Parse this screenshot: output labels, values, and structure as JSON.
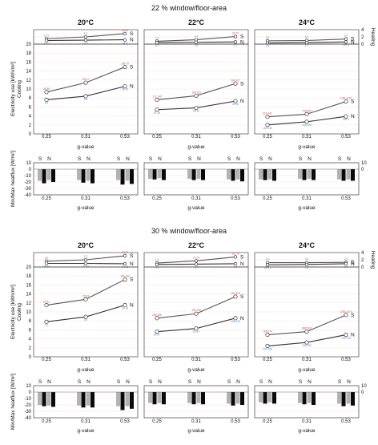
{
  "figure": {
    "axis_labels": {
      "heating": "Heating",
      "cooling": "Cooling",
      "electricity": "Electricity use [kWh/m²]",
      "heatflux": "Min/Max heatflux [W/m²]",
      "gvalue": "g-value"
    },
    "series_tags": [
      "S",
      "N"
    ],
    "colors": {
      "S": "#555555",
      "N": "#333333",
      "bar_light": "#b3b3b3",
      "bar_dark": "#0a0a0a",
      "label_red": "#d05050",
      "label_blue": "#4f86c8"
    }
  },
  "chart_data": [
    {
      "type": "line",
      "group_title": "22 % window/floor-area",
      "temperature": "20°C",
      "categories": [
        "0.25",
        "0.31",
        "0.53"
      ],
      "heating": {
        "ylim": [
          0,
          4
        ],
        "yticks": [
          0,
          2,
          4
        ],
        "series": [
          {
            "name": "S",
            "values": [
              1.5,
              2.0,
              2.9
            ],
            "labels": [
              "17 0",
              "8 2",
              "25 45"
            ]
          },
          {
            "name": "N",
            "values": [
              1.0,
              1.1,
              1.2
            ],
            "labels": [
              "15 0",
              "11 0",
              "11 0"
            ]
          }
        ]
      },
      "cooling": {
        "ylim": [
          0,
          20
        ],
        "yticks": [
          0,
          2,
          4,
          6,
          8,
          10,
          12,
          14,
          16,
          18,
          20
        ],
        "series": [
          {
            "name": "S",
            "values": [
              9.3,
              11.4,
              14.9
            ],
            "labels": [
              "38 36",
              "52 57",
              "106 79"
            ]
          },
          {
            "name": "N",
            "values": [
              7.6,
              8.4,
              10.6
            ],
            "labels": [
              "8 8",
              "8 8",
              "35 15"
            ]
          }
        ]
      },
      "heatflux": {
        "ylim": [
          -40,
          10
        ],
        "yticks": [
          -40,
          -30,
          -20,
          -10,
          0,
          10
        ],
        "bars": [
          [
            -18,
            -22,
            -17,
            -20
          ],
          [
            -17,
            -21,
            -18,
            -22
          ],
          [
            -17,
            -24,
            -18,
            -23
          ]
        ]
      }
    },
    {
      "type": "line",
      "group_title": "22 % window/floor-area",
      "temperature": "22°C",
      "categories": [
        "0.25",
        "0.31",
        "0.53"
      ],
      "heating": {
        "ylim": [
          0,
          4
        ],
        "yticks": [
          0,
          2,
          4
        ],
        "series": [
          {
            "name": "S",
            "values": [
              0.8,
              1.2,
              2.1
            ],
            "labels": [
              "2 3",
              "0 4",
              "24 79"
            ]
          },
          {
            "name": "N",
            "values": [
              0.4,
              0.5,
              0.6
            ],
            "labels": [
              "8 0",
              "0 0",
              "0 0"
            ]
          }
        ]
      },
      "cooling": {
        "ylim": [
          0,
          20
        ],
        "yticks": [
          0,
          2,
          4,
          6,
          8,
          10,
          12,
          14,
          16,
          18,
          20
        ],
        "series": [
          {
            "name": "S",
            "values": [
              7.6,
              8.5,
              11.2
            ],
            "labels": [
              "171 149",
              "189 233",
              "566 427"
            ]
          },
          {
            "name": "N",
            "values": [
              5.4,
              5.8,
              7.3
            ],
            "labels": [
              "57 26",
              "58 42",
              "42 98"
            ]
          }
        ]
      },
      "heatflux": {
        "ylim": [
          -40,
          10
        ],
        "yticks": [
          -40,
          -30,
          -20,
          -10,
          0,
          10
        ],
        "bars": [
          [
            -15,
            -16,
            -14,
            -17
          ],
          [
            -15,
            -17,
            -15,
            -17
          ],
          [
            -16,
            -18,
            -16,
            -19
          ]
        ]
      }
    },
    {
      "type": "line",
      "group_title": "22 % window/floor-area",
      "temperature": "24°C",
      "categories": [
        "0.25",
        "0.31",
        "0.53"
      ],
      "heating": {
        "ylim": [
          0,
          4
        ],
        "yticks": [
          0,
          2,
          4
        ],
        "series": [
          {
            "name": "S",
            "values": [
              0.9,
              1.0,
              1.4
            ],
            "labels": [
              "0 0",
              "0 0",
              "0 0"
            ]
          },
          {
            "name": "N",
            "values": [
              0.3,
              0.4,
              0.6
            ],
            "labels": [
              "0 1",
              "1 0",
              "297 4"
            ]
          }
        ]
      },
      "cooling": {
        "ylim": [
          0,
          20
        ],
        "yticks": [
          0,
          2,
          4,
          6,
          8,
          10,
          12,
          14,
          16,
          18,
          20
        ],
        "series": [
          {
            "name": "S",
            "values": [
              3.8,
              4.4,
              7.2
            ],
            "labels": [
              "621 442",
              "706 550",
              "1182 1021"
            ]
          },
          {
            "name": "N",
            "values": [
              2.0,
              2.7,
              3.9
            ],
            "labels": [
              "189 136",
              "222 225",
              "502 9"
            ]
          }
        ]
      },
      "heatflux": {
        "ylim": [
          -40,
          10
        ],
        "yticks": [
          -40,
          -30,
          -20,
          -10,
          0,
          10
        ],
        "bars": [
          [
            -16,
            -17,
            -16,
            -18
          ],
          [
            -15,
            -17,
            -15,
            -17
          ],
          [
            -16,
            -18,
            -16,
            -18
          ]
        ]
      }
    },
    {
      "type": "line",
      "group_title": "30 % window/floor-area",
      "temperature": "20°C",
      "categories": [
        "0.25",
        "0.31",
        "0.53"
      ],
      "heating": {
        "ylim": [
          0,
          4
        ],
        "yticks": [
          0,
          2,
          4
        ],
        "series": [
          {
            "name": "S",
            "values": [
              1.6,
              2.0,
              3.1
            ],
            "labels": [
              "0 0",
              "2 3",
              "39 37"
            ]
          },
          {
            "name": "N",
            "values": [
              1.0,
              1.0,
              0.9
            ],
            "labels": [
              "35 33",
              "27 29",
              "17 13"
            ]
          }
        ]
      },
      "cooling": {
        "ylim": [
          0,
          20
        ],
        "yticks": [
          0,
          2,
          4,
          6,
          8,
          10,
          12,
          14,
          16,
          18,
          20
        ],
        "series": [
          {
            "name": "S",
            "values": [
              11.5,
              12.8,
              17.2
            ],
            "labels": [
              "57 51",
              "76 53",
              "106 162"
            ]
          },
          {
            "name": "N",
            "values": [
              7.8,
              8.9,
              11.5
            ],
            "labels": [
              "0 0",
              "0 0",
              "39 18"
            ]
          }
        ]
      },
      "heatflux": {
        "ylim": [
          -40,
          10
        ],
        "yticks": [
          -40,
          -30,
          -20,
          -10,
          0,
          10
        ],
        "bars": [
          [
            -20,
            -22,
            -21,
            -23
          ],
          [
            -21,
            -24,
            -21,
            -24
          ],
          [
            -22,
            -28,
            -22,
            -26
          ]
        ]
      }
    },
    {
      "type": "line",
      "group_title": "30 % window/floor-area",
      "temperature": "22°C",
      "categories": [
        "0.25",
        "0.31",
        "0.53"
      ],
      "heating": {
        "ylim": [
          0,
          4
        ],
        "yticks": [
          0,
          2,
          4
        ],
        "series": [
          {
            "name": "S",
            "values": [
              1.1,
              1.7,
              2.8
            ],
            "labels": [
              "1 4",
              "20 29",
              "113 79"
            ]
          },
          {
            "name": "N",
            "values": [
              0.7,
              0.8,
              0.9
            ],
            "labels": [
              "0 0",
              "0 0",
              "0 0"
            ]
          }
        ]
      },
      "cooling": {
        "ylim": [
          0,
          20
        ],
        "yticks": [
          0,
          2,
          4,
          6,
          8,
          10,
          12,
          14,
          16,
          18,
          20
        ],
        "series": [
          {
            "name": "S",
            "values": [
              8.6,
              9.6,
              13.4
            ],
            "labels": [
              "269 266",
              "348 260",
              "467 420"
            ]
          },
          {
            "name": "N",
            "values": [
              5.6,
              6.3,
              8.6
            ],
            "labels": [
              "64 57",
              "65 63",
              "138 142"
            ]
          }
        ]
      },
      "heatflux": {
        "ylim": [
          -40,
          10
        ],
        "yticks": [
          -40,
          -30,
          -20,
          -10,
          0,
          10
        ],
        "bars": [
          [
            -17,
            -19,
            -17,
            -19
          ],
          [
            -17,
            -19,
            -17,
            -19
          ],
          [
            -18,
            -21,
            -18,
            -20
          ]
        ]
      }
    },
    {
      "type": "line",
      "group_title": "30 % window/floor-area",
      "temperature": "24°C",
      "categories": [
        "0.25",
        "0.31",
        "0.53"
      ],
      "heating": {
        "ylim": [
          0,
          4
        ],
        "yticks": [
          0,
          2,
          4
        ],
        "series": [
          {
            "name": "S",
            "values": [
              1.2,
              1.2,
              1.3
            ],
            "labels": [
              "0 0",
              "0 0",
              "0 0"
            ]
          },
          {
            "name": "N",
            "values": [
              0.6,
              0.7,
              0.9
            ],
            "labels": [
              "44 51",
              "0 0",
              "0 0"
            ]
          }
        ]
      },
      "cooling": {
        "ylim": [
          0,
          20
        ],
        "yticks": [
          0,
          2,
          4,
          6,
          8,
          10,
          12,
          14,
          16,
          18,
          20
        ],
        "series": [
          {
            "name": "S",
            "values": [
              4.9,
              5.6,
              9.3
            ],
            "labels": [
              "766 674",
              "888 906",
              "1280 1370"
            ]
          },
          {
            "name": "N",
            "values": [
              2.4,
              3.2,
              4.9
            ],
            "labels": [
              "203 208",
              "235 200",
              "718 715"
            ]
          }
        ]
      },
      "heatflux": {
        "ylim": [
          -40,
          10
        ],
        "yticks": [
          -40,
          -30,
          -20,
          -10,
          0,
          10
        ],
        "bars": [
          [
            -16,
            -18,
            -16,
            -18
          ],
          [
            -17,
            -19,
            -17,
            -20
          ],
          [
            -18,
            -22,
            -18,
            -21
          ]
        ]
      }
    }
  ]
}
